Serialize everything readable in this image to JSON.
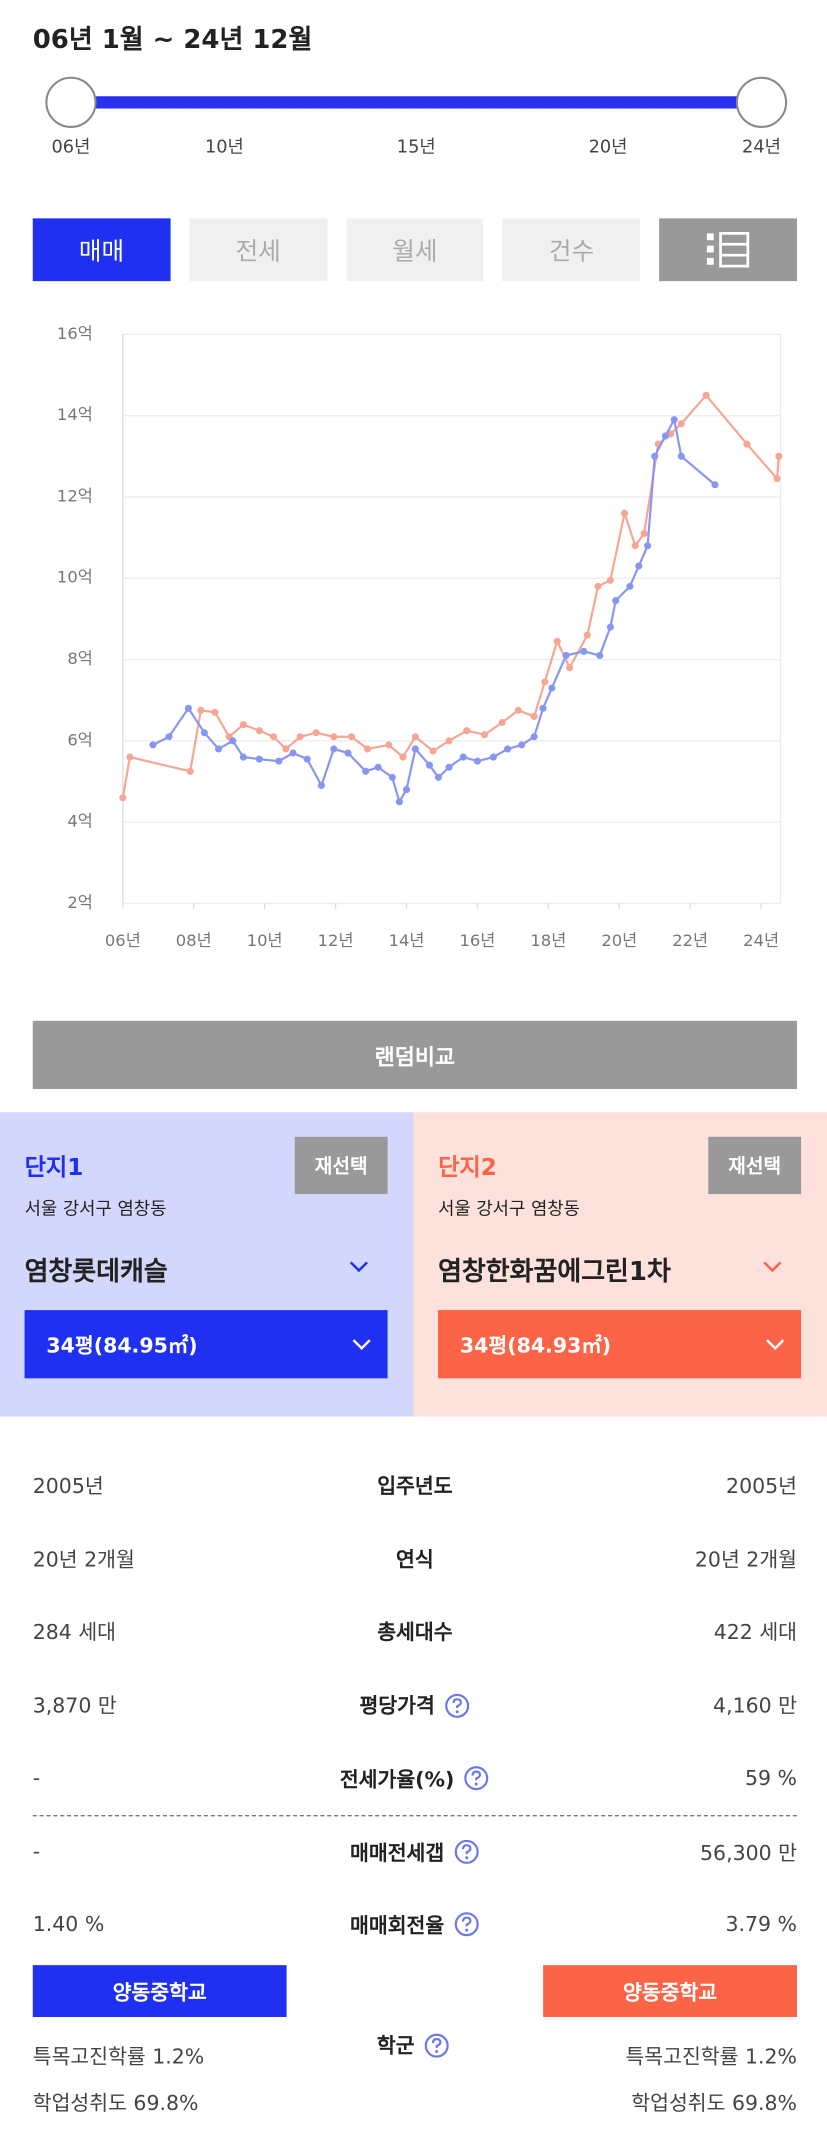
{
  "header": {
    "period": "06년 1월 ~ 24년 12월"
  },
  "slider": {
    "range": [
      2006,
      2024
    ],
    "ticks": [
      {
        "value": 2006,
        "label": "06년"
      },
      {
        "value": 2010,
        "label": "10년"
      },
      {
        "value": 2015,
        "label": "15년"
      },
      {
        "value": 2020,
        "label": "20년"
      },
      {
        "value": 2024,
        "label": "24년"
      }
    ]
  },
  "tabs": [
    "매매",
    "전세",
    "월세",
    "건수"
  ],
  "chart_data": {
    "type": "line",
    "xlim": [
      2006,
      2024.55
    ],
    "ylim": [
      2,
      16
    ],
    "xticks": [
      {
        "value": 2006,
        "label": "06년"
      },
      {
        "value": 2008,
        "label": "08년"
      },
      {
        "value": 2010,
        "label": "10년"
      },
      {
        "value": 2012,
        "label": "12년"
      },
      {
        "value": 2014,
        "label": "14년"
      },
      {
        "value": 2016,
        "label": "16년"
      },
      {
        "value": 2018,
        "label": "18년"
      },
      {
        "value": 2020,
        "label": "20년"
      },
      {
        "value": 2022,
        "label": "22년"
      },
      {
        "value": 2024,
        "label": "24년"
      }
    ],
    "yticks": [
      {
        "value": 2,
        "label": "2억"
      },
      {
        "value": 4,
        "label": "4억"
      },
      {
        "value": 6,
        "label": "6억"
      },
      {
        "value": 8,
        "label": "8억"
      },
      {
        "value": 10,
        "label": "10억"
      },
      {
        "value": 12,
        "label": "12억"
      },
      {
        "value": 14,
        "label": "14억"
      },
      {
        "value": 16,
        "label": "16억"
      }
    ],
    "grid": true,
    "series": [
      {
        "color": "#8796f2",
        "x": [
          2006.85,
          2007.3,
          2007.85,
          2008.3,
          2008.7,
          2009.1,
          2009.4,
          2009.85,
          2010.4,
          2010.8,
          2011.2,
          2011.6,
          2011.95,
          2012.35,
          2012.85,
          2013.2,
          2013.6,
          2013.8,
          2014.0,
          2014.25,
          2014.65,
          2014.9,
          2015.2,
          2015.6,
          2016.0,
          2016.45,
          2016.85,
          2017.25,
          2017.6,
          2017.85,
          2018.1,
          2018.5,
          2019.0,
          2019.45,
          2019.75,
          2019.9,
          2020.3,
          2020.55,
          2020.8,
          2021.0,
          2021.3,
          2021.55,
          2021.75,
          2022.7
        ],
        "values": [
          5.9,
          6.1,
          6.8,
          6.2,
          5.8,
          6.0,
          5.6,
          5.55,
          5.5,
          5.7,
          5.55,
          4.9,
          5.8,
          5.7,
          5.25,
          5.35,
          5.1,
          4.5,
          4.8,
          5.8,
          5.4,
          5.1,
          5.35,
          5.6,
          5.5,
          5.6,
          5.8,
          5.9,
          6.1,
          6.8,
          7.3,
          8.1,
          8.2,
          8.1,
          8.8,
          9.45,
          9.8,
          10.3,
          10.8,
          13.0,
          13.5,
          13.9,
          13.0,
          12.3
        ]
      },
      {
        "color": "#f6a693",
        "x": [
          2006.0,
          2006.2,
          2007.9,
          2008.2,
          2008.6,
          2009.0,
          2009.4,
          2009.85,
          2010.25,
          2010.6,
          2011.0,
          2011.45,
          2011.95,
          2012.45,
          2012.9,
          2013.5,
          2013.9,
          2014.25,
          2014.75,
          2015.2,
          2015.7,
          2016.2,
          2016.7,
          2017.15,
          2017.6,
          2017.9,
          2018.25,
          2018.6,
          2019.1,
          2019.4,
          2019.75,
          2020.15,
          2020.45,
          2020.7,
          2021.1,
          2021.45,
          2021.75,
          2022.45,
          2023.6,
          2024.45,
          2024.5
        ],
        "values": [
          4.6,
          5.6,
          5.25,
          6.75,
          6.7,
          6.1,
          6.4,
          6.25,
          6.1,
          5.8,
          6.1,
          6.2,
          6.1,
          6.1,
          5.8,
          5.9,
          5.6,
          6.1,
          5.75,
          6.0,
          6.25,
          6.15,
          6.45,
          6.75,
          6.6,
          7.45,
          8.45,
          7.8,
          8.6,
          9.8,
          9.95,
          11.6,
          10.8,
          11.1,
          13.3,
          13.55,
          13.8,
          14.5,
          13.3,
          12.45,
          13.0
        ]
      }
    ]
  },
  "compare_button": "랜덤비교",
  "complexes": [
    {
      "label": "단지1",
      "reselect": "재선택",
      "region": "서울 강서구 염창동",
      "name": "염창롯데캐슬",
      "size": "34평(84.95㎡)",
      "color": "#2030f0",
      "bg": "#d3d7fb"
    },
    {
      "label": "단지2",
      "reselect": "재선택",
      "region": "서울 강서구 염창동",
      "name": "염창한화꿈에그린1차",
      "size": "34평(84.93㎡)",
      "color": "#fb6446",
      "bg": "#fde1dc"
    }
  ],
  "info": {
    "rows": [
      {
        "left": "2005년",
        "label": "입주년도",
        "right": "2005년",
        "help": false
      },
      {
        "left": "20년 2개월",
        "label": "연식",
        "right": "20년 2개월",
        "help": false
      },
      {
        "left": "284 세대",
        "label": "총세대수",
        "right": "422 세대",
        "help": false
      },
      {
        "left": "3,870 만",
        "label": "평당가격",
        "right": "4,160 만",
        "help": true
      },
      {
        "left": "-",
        "label": "전세가율(%)",
        "right": "59 %",
        "help": true
      },
      {
        "left": "-",
        "label": "매매전세갭",
        "right": "56,300 만",
        "help": true
      },
      {
        "left": "1.40 %",
        "label": "매매회전율",
        "right": "3.79 %",
        "help": true
      }
    ]
  },
  "school": {
    "label": "학군",
    "left": {
      "name": "양동중학교",
      "rate": "특목고진학률 1.2%",
      "achievement": "학업성취도 69.8%"
    },
    "right": {
      "name": "양동중학교",
      "rate": "특목고진학률 1.2%",
      "achievement": "학업성취도 69.8%"
    }
  }
}
